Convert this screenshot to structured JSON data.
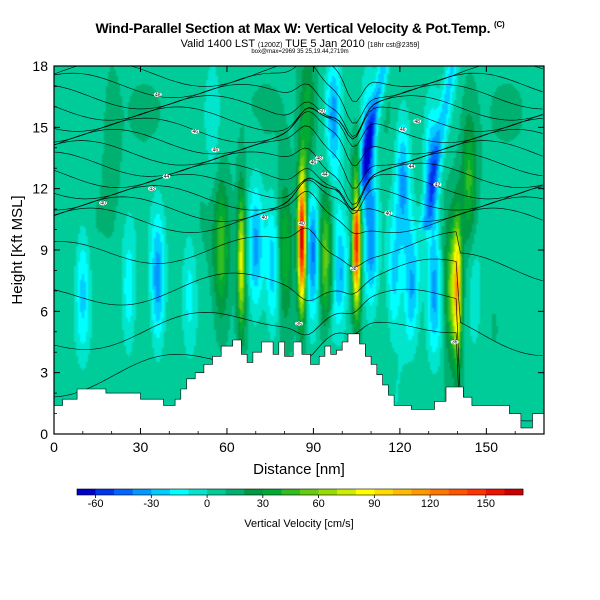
{
  "title": "Wind-Parallel Section at Max W: Vertical Velocity & Pot.Temp.",
  "title_mark": "(C)",
  "subtitle": "Valid 1400 LST",
  "subtitle_small1": "(1200Z)",
  "subtitle_date": "TUE 5 Jan 2010",
  "subtitle_small2": "[18hr cst@2359]",
  "subtitle2": "box@max=2969 35 25,19.44,2719m",
  "chart_data": {
    "type": "heatmap",
    "xlabel": "Distance [nm]",
    "ylabel": "Height [Kft MSL]",
    "xlim": [
      0,
      170
    ],
    "ylim": [
      0,
      18
    ],
    "x_ticks": [
      0,
      30,
      60,
      90,
      120,
      150
    ],
    "x_tick_labels": [
      "0",
      "30",
      "60",
      "90",
      "120",
      "150"
    ],
    "y_ticks": [
      0,
      3,
      6,
      9,
      12,
      15,
      18
    ],
    "y_tick_labels": [
      "0",
      "3",
      "6",
      "9",
      "12",
      "15",
      "18"
    ],
    "colorbar": {
      "label": "Vertical Velocity [cm/s]",
      "range": [
        -70,
        170
      ],
      "ticks": [
        -60,
        -30,
        0,
        30,
        60,
        90,
        120,
        150
      ],
      "tick_labels": [
        "-60",
        "-30",
        "0",
        "30",
        "60",
        "90",
        "120",
        "150"
      ],
      "colors": [
        "#0000cc",
        "#0033ee",
        "#0066ff",
        "#0099ff",
        "#00ccff",
        "#00ffff",
        "#00e5cc",
        "#00cc99",
        "#00b070",
        "#009944",
        "#00aa33",
        "#33bb22",
        "#66cc11",
        "#99dd00",
        "#ccee00",
        "#ffff00",
        "#ffdd00",
        "#ffbb00",
        "#ff9900",
        "#ff7700",
        "#ff5500",
        "#ff3300",
        "#ee1100",
        "#cc0000"
      ]
    },
    "terrain_kft": [
      [
        0,
        1.4
      ],
      [
        3,
        1.4
      ],
      [
        3,
        1.7
      ],
      [
        8,
        1.7
      ],
      [
        8,
        2.2
      ],
      [
        18,
        2.2
      ],
      [
        18,
        2.0
      ],
      [
        30,
        2.0
      ],
      [
        30,
        1.7
      ],
      [
        38,
        1.7
      ],
      [
        38,
        1.4
      ],
      [
        42,
        1.4
      ],
      [
        42,
        1.7
      ],
      [
        44,
        1.7
      ],
      [
        44,
        2.2
      ],
      [
        46,
        2.2
      ],
      [
        46,
        2.7
      ],
      [
        49,
        2.7
      ],
      [
        49,
        3.0
      ],
      [
        52,
        3.0
      ],
      [
        52,
        3.4
      ],
      [
        55,
        3.4
      ],
      [
        55,
        3.8
      ],
      [
        58,
        3.8
      ],
      [
        58,
        4.3
      ],
      [
        62,
        4.3
      ],
      [
        62,
        4.6
      ],
      [
        65,
        4.6
      ],
      [
        65,
        3.9
      ],
      [
        67,
        3.9
      ],
      [
        67,
        3.5
      ],
      [
        69,
        3.5
      ],
      [
        69,
        4.0
      ],
      [
        72,
        4.0
      ],
      [
        72,
        4.5
      ],
      [
        76,
        4.5
      ],
      [
        76,
        3.9
      ],
      [
        78,
        3.9
      ],
      [
        78,
        4.5
      ],
      [
        80,
        4.5
      ],
      [
        80,
        3.8
      ],
      [
        83,
        3.8
      ],
      [
        83,
        4.5
      ],
      [
        86,
        4.5
      ],
      [
        86,
        3.9
      ],
      [
        89,
        3.9
      ],
      [
        89,
        3.4
      ],
      [
        92,
        3.4
      ],
      [
        92,
        3.8
      ],
      [
        94,
        3.8
      ],
      [
        94,
        4.3
      ],
      [
        96,
        4.3
      ],
      [
        96,
        3.9
      ],
      [
        98,
        3.9
      ],
      [
        98,
        4.1
      ],
      [
        100,
        4.1
      ],
      [
        100,
        4.5
      ],
      [
        102,
        4.5
      ],
      [
        102,
        4.9
      ],
      [
        106,
        4.9
      ],
      [
        106,
        4.4
      ],
      [
        108,
        4.4
      ],
      [
        108,
        3.8
      ],
      [
        110,
        3.8
      ],
      [
        110,
        3.4
      ],
      [
        112,
        3.4
      ],
      [
        112,
        2.9
      ],
      [
        114,
        2.9
      ],
      [
        114,
        2.4
      ],
      [
        116,
        2.4
      ],
      [
        116,
        1.9
      ],
      [
        118,
        1.9
      ],
      [
        118,
        1.4
      ],
      [
        124,
        1.4
      ],
      [
        124,
        1.2
      ],
      [
        132,
        1.2
      ],
      [
        132,
        1.6
      ],
      [
        136,
        1.6
      ],
      [
        136,
        2.3
      ],
      [
        142,
        2.3
      ],
      [
        142,
        1.8
      ],
      [
        145,
        1.8
      ],
      [
        145,
        1.4
      ],
      [
        158,
        1.4
      ],
      [
        158,
        1.0
      ],
      [
        162,
        1.0
      ],
      [
        162,
        0.3
      ],
      [
        166,
        0.3
      ],
      [
        166,
        1.0
      ],
      [
        170,
        1.0
      ]
    ],
    "w_features": [
      {
        "x": 10,
        "y": 7.0,
        "w": -30
      },
      {
        "x": 26,
        "y": 7.0,
        "w": -25
      },
      {
        "x": 36,
        "y": 7.5,
        "w": -45
      },
      {
        "x": 47,
        "y": 7.0,
        "w": -20
      },
      {
        "x": 58,
        "y": 9.0,
        "w": 40
      },
      {
        "x": 65,
        "y": 8.5,
        "w": 75
      },
      {
        "x": 70,
        "y": 9.0,
        "w": -40
      },
      {
        "x": 76,
        "y": 8.0,
        "w": -35
      },
      {
        "x": 80,
        "y": 9.0,
        "w": 35
      },
      {
        "x": 86,
        "y": 9.5,
        "w": 165
      },
      {
        "x": 90,
        "y": 9.0,
        "w": -55
      },
      {
        "x": 94,
        "y": 8.5,
        "w": 50
      },
      {
        "x": 99,
        "y": 8.5,
        "w": -35
      },
      {
        "x": 105,
        "y": 9.5,
        "w": 150
      },
      {
        "x": 110,
        "y": 9.0,
        "w": -40
      },
      {
        "x": 118,
        "y": 7.5,
        "w": -30
      },
      {
        "x": 124,
        "y": 7.5,
        "w": -35
      },
      {
        "x": 132,
        "y": 7.0,
        "w": -40
      },
      {
        "x": 138,
        "y": 7.0,
        "w": 50
      },
      {
        "x": 140,
        "y": 7.0,
        "w": 85
      },
      {
        "x": 146,
        "y": 7.0,
        "w": -15
      },
      {
        "x": 158,
        "y": 6.0,
        "w": -10
      },
      {
        "x": 88,
        "y": 15.5,
        "w": 30
      },
      {
        "x": 97,
        "y": 15.5,
        "w": -40
      },
      {
        "x": 109,
        "y": 14.0,
        "w": -45
      },
      {
        "x": 121,
        "y": 12.5,
        "w": -40
      },
      {
        "x": 131,
        "y": 13.0,
        "w": -35
      },
      {
        "x": 144,
        "y": 12.5,
        "w": 35
      },
      {
        "x": 55,
        "y": 15.5,
        "w": -15
      },
      {
        "x": 20,
        "y": 14.0,
        "w": 10
      }
    ],
    "contour_labels": [
      {
        "x": 36,
        "y": 16.6,
        "text": "48"
      },
      {
        "x": 49,
        "y": 14.8,
        "text": "46"
      },
      {
        "x": 56,
        "y": 13.9,
        "text": "46"
      },
      {
        "x": 39,
        "y": 12.6,
        "text": "44"
      },
      {
        "x": 34,
        "y": 12.0,
        "text": "43"
      },
      {
        "x": 17,
        "y": 11.3,
        "text": "40"
      },
      {
        "x": 73,
        "y": 10.6,
        "text": "40"
      },
      {
        "x": 93,
        "y": 15.8,
        "text": "50"
      },
      {
        "x": 90,
        "y": 13.3,
        "text": "46"
      },
      {
        "x": 92,
        "y": 13.5,
        "text": "48"
      },
      {
        "x": 94,
        "y": 12.7,
        "text": "44"
      },
      {
        "x": 86,
        "y": 10.3,
        "text": "40"
      },
      {
        "x": 85,
        "y": 5.4,
        "text": "35"
      },
      {
        "x": 104,
        "y": 8.1,
        "text": "38"
      },
      {
        "x": 126,
        "y": 15.3,
        "text": "48"
      },
      {
        "x": 121,
        "y": 14.9,
        "text": "46"
      },
      {
        "x": 124,
        "y": 13.1,
        "text": "44"
      },
      {
        "x": 133,
        "y": 12.2,
        "text": "42"
      },
      {
        "x": 116,
        "y": 10.8,
        "text": "40"
      },
      {
        "x": 139,
        "y": 4.5,
        "text": "36"
      }
    ]
  }
}
